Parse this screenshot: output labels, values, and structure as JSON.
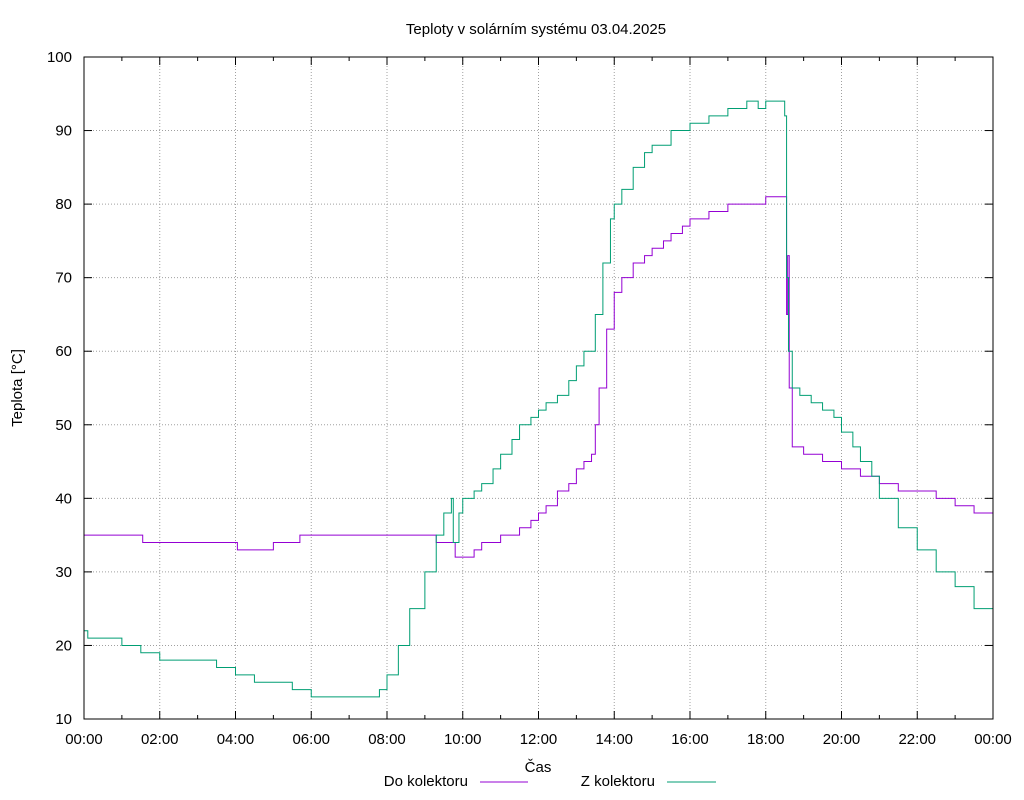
{
  "chart_data": {
    "type": "line",
    "title": "Teploty v solárním systému 03.04.2025",
    "xlabel": "Čas",
    "ylabel": "Teplota [°C]",
    "ylim": [
      10,
      100
    ],
    "xlim_hours": [
      0,
      24
    ],
    "grid": true,
    "legend_placement": "bottom-center",
    "x_tick_labels": [
      "00:00",
      "02:00",
      "04:00",
      "06:00",
      "08:00",
      "10:00",
      "12:00",
      "14:00",
      "16:00",
      "18:00",
      "20:00",
      "22:00",
      "00:00"
    ],
    "y_tick_labels": [
      "10",
      "20",
      "30",
      "40",
      "50",
      "60",
      "70",
      "80",
      "90",
      "100"
    ],
    "series": [
      {
        "name": "Do kolektoru",
        "color": "#9400d3",
        "x": [
          0,
          1.5,
          1.55,
          1.7,
          2.0,
          4.0,
          4.05,
          4.7,
          5.0,
          5.5,
          5.7,
          6.0,
          7.0,
          8.0,
          9.0,
          9.3,
          9.5,
          9.8,
          10.0,
          10.3,
          10.5,
          10.8,
          11.0,
          11.3,
          11.5,
          11.8,
          12.0,
          12.2,
          12.5,
          12.8,
          13.0,
          13.2,
          13.4,
          13.5,
          13.6,
          13.8,
          14.0,
          14.2,
          14.5,
          14.8,
          15.0,
          15.3,
          15.5,
          15.8,
          16.0,
          16.5,
          17.0,
          17.5,
          18.0,
          18.5,
          18.55,
          18.58,
          18.62,
          18.7,
          18.8,
          19.0,
          19.5,
          20.0,
          20.5,
          21.0,
          21.5,
          22.0,
          22.5,
          23.0,
          23.5,
          24.0
        ],
        "values": [
          35,
          35,
          34,
          34,
          34,
          34,
          33,
          33,
          34,
          34,
          35,
          35,
          35,
          35,
          35,
          34,
          34,
          32,
          32,
          33,
          34,
          34,
          35,
          35,
          36,
          37,
          38,
          39,
          41,
          42,
          44,
          45,
          46,
          50,
          55,
          63,
          68,
          70,
          72,
          73,
          74,
          75,
          76,
          77,
          78,
          79,
          80,
          80,
          81,
          81,
          65,
          73,
          55,
          47,
          47,
          46,
          45,
          44,
          43,
          42,
          41,
          41,
          40,
          39,
          38,
          37
        ]
      },
      {
        "name": "Z kolektoru",
        "color": "#009e73",
        "x": [
          0,
          0.1,
          0.5,
          1.0,
          1.5,
          2.0,
          2.5,
          3.0,
          3.5,
          4.0,
          4.5,
          5.0,
          5.5,
          5.9,
          6.0,
          6.5,
          7.0,
          7.5,
          7.8,
          8.0,
          8.3,
          8.6,
          9.0,
          9.3,
          9.5,
          9.7,
          9.75,
          9.9,
          10.0,
          10.3,
          10.5,
          10.8,
          11.0,
          11.3,
          11.5,
          11.8,
          12.0,
          12.2,
          12.5,
          12.8,
          13.0,
          13.2,
          13.5,
          13.7,
          13.9,
          14.0,
          14.2,
          14.5,
          14.8,
          15.0,
          15.5,
          16.0,
          16.5,
          17.0,
          17.5,
          17.8,
          18.0,
          18.3,
          18.5,
          18.55,
          18.6,
          18.7,
          18.9,
          19.2,
          19.5,
          19.8,
          20.0,
          20.3,
          20.5,
          20.8,
          21.0,
          21.5,
          22.0,
          22.5,
          23.0,
          23.5,
          24.0
        ],
        "values": [
          22,
          21,
          21,
          20,
          19,
          18,
          18,
          18,
          17,
          16,
          15,
          15,
          14,
          14,
          13,
          13,
          13,
          13,
          14,
          16,
          20,
          25,
          30,
          35,
          38,
          40,
          34,
          38,
          40,
          41,
          42,
          44,
          46,
          48,
          50,
          51,
          52,
          53,
          54,
          56,
          58,
          60,
          65,
          72,
          78,
          80,
          82,
          85,
          87,
          88,
          90,
          91,
          92,
          93,
          94,
          93,
          94,
          94,
          92,
          70,
          60,
          55,
          54,
          53,
          52,
          51,
          49,
          47,
          45,
          43,
          40,
          36,
          33,
          30,
          28,
          25,
          23
        ]
      }
    ]
  }
}
